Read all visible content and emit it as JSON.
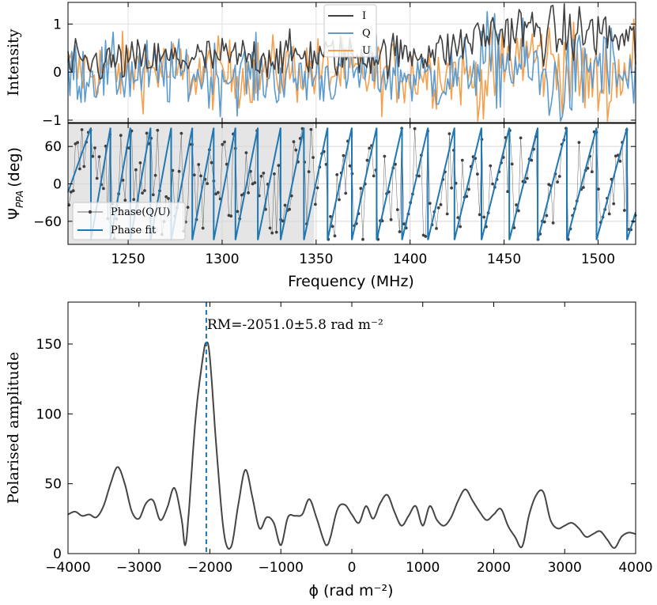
{
  "chart_data": [
    {
      "type": "line",
      "panel": "top",
      "ylabel": "Intensity",
      "xlim": [
        1218,
        1520
      ],
      "ylim": [
        -1.05,
        1.45
      ],
      "yticks": [
        -1,
        0,
        1
      ],
      "legend": {
        "position": "top-center",
        "entries": [
          "I",
          "Q",
          "U"
        ]
      },
      "grid": true,
      "colors": {
        "I": "#404040",
        "Q": "#5b9bd0",
        "U": "#f5a04d"
      },
      "series_shape": [
        {
          "name": "I",
          "freq": [
            1220,
            1260,
            1300,
            1340,
            1380,
            1420,
            1440,
            1460,
            1480,
            1500,
            1520
          ],
          "level": [
            0.15,
            0.25,
            0.3,
            0.35,
            0.35,
            0.45,
            0.8,
            0.9,
            0.75,
            0.85,
            0.55
          ]
        },
        {
          "name": "Q",
          "freq": [
            1220,
            1260,
            1300,
            1340,
            1380,
            1420,
            1440,
            1460,
            1480,
            1500,
            1520
          ],
          "level": [
            0.0,
            -0.05,
            -0.05,
            -0.1,
            0.0,
            -0.15,
            0.25,
            0.1,
            -0.35,
            0.2,
            -0.3
          ]
        },
        {
          "name": "U",
          "freq": [
            1220,
            1260,
            1300,
            1340,
            1380,
            1420,
            1440,
            1460,
            1480,
            1500,
            1520
          ],
          "level": [
            0.05,
            0.05,
            -0.05,
            0.05,
            -0.05,
            0.0,
            -0.2,
            0.4,
            0.2,
            -0.3,
            0.2
          ]
        }
      ]
    },
    {
      "type": "line",
      "panel": "middle",
      "ylabel": "Ψ",
      "ylabel_sub": "PPA",
      "ylabel_unit": "(deg)",
      "xlabel": "Frequency (MHz)",
      "xlim": [
        1218,
        1520
      ],
      "ylim": [
        -97,
        97
      ],
      "xticks": [
        1250,
        1300,
        1350,
        1400,
        1450,
        1500
      ],
      "yticks": [
        -60,
        0,
        60
      ],
      "shaded_region": [
        1218,
        1349
      ],
      "legend": {
        "position": "bottom-left",
        "entries": [
          "Phase(Q/U)",
          "Phase fit"
        ]
      },
      "grid": true,
      "rm": -2051.0,
      "fit_wraps_at": [
        1230.2,
        1240.6,
        1251.2,
        1261.9,
        1272.9,
        1284.1,
        1295.5,
        1307.1,
        1319.0,
        1331.1,
        1343.5,
        1356.1,
        1369.0,
        1382.2,
        1395.7,
        1409.5,
        1423.6,
        1438.0,
        1452.8,
        1467.9,
        1483.4,
        1499.2,
        1515.4
      ],
      "colors": {
        "phase": "#404040",
        "fit": "#1f77b4"
      }
    },
    {
      "type": "line",
      "panel": "bottom",
      "ylabel": "Polarised amplitude",
      "xlabel": "ϕ (rad m⁻²)",
      "xlim": [
        -4000,
        4000
      ],
      "ylim": [
        0,
        180
      ],
      "xticks": [
        -4000,
        -3000,
        -2000,
        -1000,
        0,
        1000,
        2000,
        3000,
        4000
      ],
      "yticks": [
        0,
        50,
        100,
        150
      ],
      "series": [
        {
          "name": "",
          "x": [
            -4000,
            -3900,
            -3800,
            -3700,
            -3600,
            -3500,
            -3400,
            -3300,
            -3200,
            -3100,
            -3000,
            -2900,
            -2800,
            -2700,
            -2600,
            -2500,
            -2400,
            -2350,
            -2300,
            -2200,
            -2100,
            -2051,
            -2000,
            -1900,
            -1800,
            -1700,
            -1600,
            -1500,
            -1400,
            -1300,
            -1200,
            -1100,
            -1000,
            -900,
            -800,
            -700,
            -600,
            -500,
            -400,
            -350,
            -300,
            -200,
            -100,
            0,
            100,
            200,
            300,
            400,
            500,
            600,
            700,
            800,
            900,
            1000,
            1100,
            1200,
            1300,
            1400,
            1500,
            1600,
            1700,
            1800,
            1900,
            2000,
            2100,
            2200,
            2300,
            2400,
            2500,
            2600,
            2700,
            2800,
            2900,
            3000,
            3100,
            3200,
            3300,
            3400,
            3500,
            3600,
            3700,
            3800,
            3900,
            4000
          ],
          "y": [
            28,
            30,
            27,
            28,
            26,
            34,
            50,
            62,
            50,
            30,
            25,
            36,
            38,
            24,
            33,
            47,
            25,
            6,
            28,
            98,
            140,
            151,
            140,
            70,
            14,
            5,
            35,
            60,
            40,
            18,
            26,
            22,
            6,
            26,
            27,
            28,
            39,
            26,
            10,
            6,
            12,
            32,
            35,
            28,
            22,
            34,
            25,
            36,
            42,
            30,
            20,
            27,
            34,
            20,
            34,
            24,
            20,
            26,
            38,
            46,
            38,
            30,
            24,
            28,
            32,
            20,
            12,
            5,
            28,
            42,
            44,
            24,
            18,
            20,
            22,
            18,
            12,
            14,
            16,
            10,
            4,
            12,
            15,
            14
          ]
        }
      ],
      "vline": {
        "x": -2051.0,
        "style": "dashed",
        "color": "#1f77b4"
      },
      "annotation": "RM=-2051.0±5.8 rad m⁻²",
      "colors": {
        "line": "#454545"
      },
      "grid": false
    }
  ]
}
